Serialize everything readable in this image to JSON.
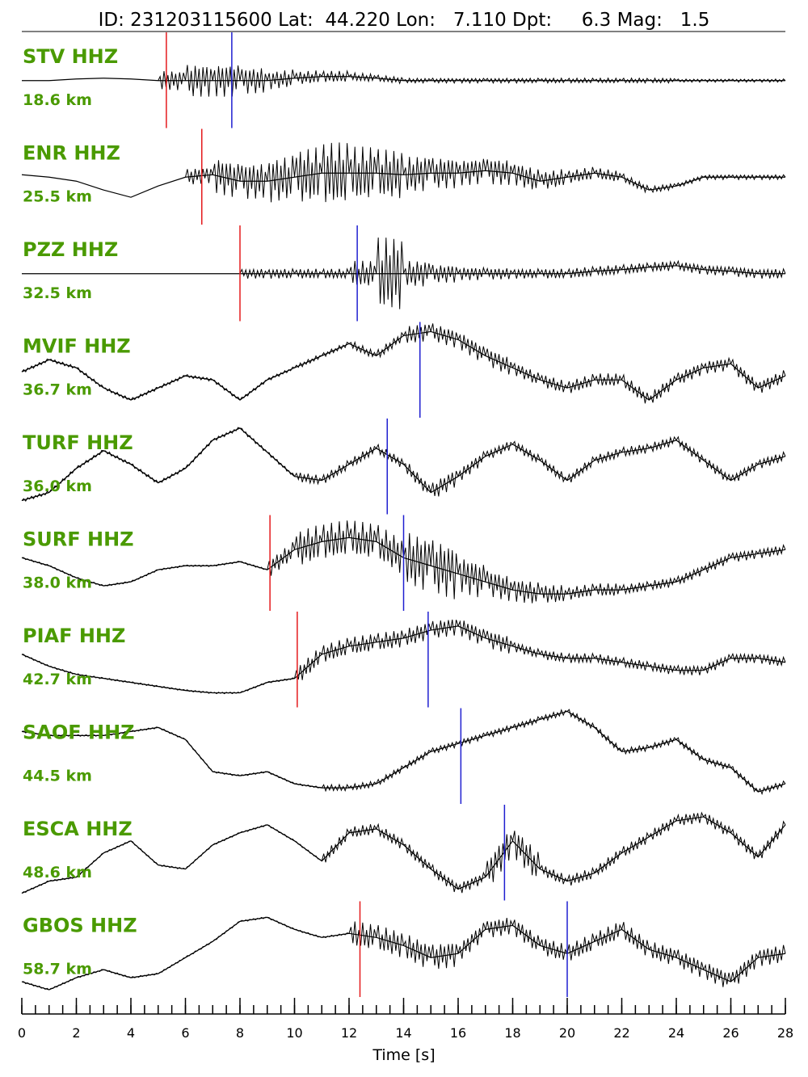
{
  "chart_data": {
    "type": "seismogram",
    "title": "ID: 231203115600 Lat:  44.220 Lon:   7.110 Dpt:     6.3 Mag:   1.5",
    "x_label": "Time [s]",
    "xlim": [
      0,
      28
    ],
    "xticks": [
      0,
      2,
      4,
      6,
      8,
      10,
      12,
      14,
      16,
      18,
      20,
      22,
      24,
      26,
      28
    ],
    "xminorticks": [
      0,
      0.5,
      1,
      1.5,
      2,
      2.5,
      3,
      3.5,
      4,
      4.5,
      5,
      5.5,
      6,
      6.5,
      7,
      7.5,
      8,
      8.5,
      9,
      9.5,
      10,
      10.5,
      11,
      11.5,
      12,
      12.5,
      13,
      13.5,
      14,
      14.5,
      15,
      15.5,
      16,
      16.5,
      17,
      17.5,
      18,
      18.5,
      19,
      19.5,
      20,
      20.5,
      21,
      21.5,
      22,
      22.5,
      23,
      23.5,
      24,
      24.5,
      25,
      25.5,
      26,
      26.5,
      27,
      27.5,
      28
    ],
    "x": [
      0,
      1,
      2,
      3,
      4,
      5,
      6,
      7,
      8,
      9,
      10,
      11,
      12,
      13,
      14,
      15,
      16,
      17,
      18,
      19,
      20,
      21,
      22,
      23,
      24,
      25,
      26,
      27,
      28
    ],
    "ylim": [
      -60,
      60
    ],
    "trace_color": "#000000",
    "label_color": "#4a9a00",
    "p_color": "#e41a1c",
    "s_color": "#1f1fd0",
    "traces": [
      {
        "name": "STV HHZ",
        "distance": "18.6 km",
        "p": 5.3,
        "s": 7.7,
        "values": [
          0,
          0,
          2,
          3,
          2,
          0,
          0,
          0,
          0,
          0,
          3,
          5,
          5,
          3,
          0,
          0,
          0,
          0,
          0,
          0,
          0,
          0,
          0,
          0,
          0,
          0,
          0,
          0,
          0
        ],
        "noise": [
          0,
          0,
          0,
          0,
          0,
          12,
          20,
          20,
          16,
          11,
          8,
          7,
          5,
          4,
          3,
          3,
          3,
          3,
          3,
          3,
          3,
          3,
          3,
          3,
          2,
          2,
          2,
          2,
          2
        ]
      },
      {
        "name": "ENR HHZ",
        "distance": "25.5 km",
        "p": 6.6,
        "values": [
          3,
          0,
          -5,
          -16,
          -25,
          -11,
          0,
          3,
          -5,
          -5,
          0,
          5,
          5,
          5,
          3,
          5,
          5,
          8,
          5,
          -5,
          0,
          5,
          0,
          -16,
          -11,
          0,
          0,
          0,
          0
        ],
        "noise": [
          0,
          0,
          0,
          0,
          0,
          0,
          10,
          22,
          22,
          27,
          33,
          38,
          33,
          30,
          22,
          19,
          16,
          16,
          14,
          11,
          8,
          7,
          5,
          4,
          3,
          3,
          3,
          3,
          3
        ]
      },
      {
        "name": "PZZ HHZ",
        "distance": "32.5 km",
        "p": 8.0,
        "s": 12.3,
        "values": [
          0,
          0,
          0,
          0,
          0,
          0,
          0,
          0,
          0,
          0,
          0,
          0,
          0,
          0,
          0,
          0,
          0,
          0,
          0,
          0,
          0,
          3,
          5,
          8,
          10,
          5,
          3,
          0,
          0
        ],
        "noise": [
          0,
          0,
          0,
          0,
          0,
          0,
          0,
          0,
          6,
          6,
          6,
          6,
          16,
          45,
          16,
          11,
          8,
          7,
          6,
          6,
          6,
          6,
          6,
          6,
          6,
          6,
          6,
          6,
          6
        ]
      },
      {
        "name": "MVIF HHZ",
        "distance": "36.7 km",
        "s": 14.6,
        "values": [
          -2,
          13,
          3,
          -22,
          -37,
          -22,
          -7,
          -12,
          -37,
          -12,
          3,
          18,
          33,
          18,
          43,
          48,
          38,
          18,
          3,
          -12,
          -22,
          -12,
          -12,
          -37,
          -12,
          3,
          8,
          -22,
          -7
        ],
        "noise": [
          2,
          2,
          2,
          2,
          2,
          2,
          2,
          2,
          2,
          2,
          3,
          3,
          5,
          6,
          11,
          11,
          11,
          11,
          8,
          8,
          8,
          8,
          8,
          8,
          8,
          8,
          8,
          8,
          8
        ]
      },
      {
        "name": "TURF HHZ",
        "distance": "36.0 km",
        "s": 13.4,
        "values": [
          -42,
          -32,
          -2,
          20,
          3,
          -20,
          -2,
          33,
          48,
          18,
          -12,
          -17,
          3,
          23,
          3,
          -32,
          -12,
          13,
          28,
          8,
          -17,
          8,
          18,
          23,
          33,
          8,
          -17,
          3,
          13
        ],
        "noise": [
          2,
          2,
          2,
          2,
          2,
          2,
          2,
          2,
          2,
          2,
          6,
          6,
          6,
          6,
          8,
          11,
          8,
          6,
          6,
          6,
          6,
          6,
          6,
          6,
          6,
          6,
          6,
          6,
          6
        ]
      },
      {
        "name": "SURF HHZ",
        "distance": "38.0 km",
        "p": 9.1,
        "s": 14.0,
        "values": [
          7,
          -3,
          -18,
          -28,
          -23,
          -8,
          -3,
          -3,
          2,
          -8,
          17,
          27,
          32,
          27,
          7,
          -3,
          -13,
          -23,
          -33,
          -38,
          -38,
          -33,
          -33,
          -28,
          -23,
          -8,
          7,
          12,
          17
        ],
        "noise": [
          1,
          1,
          1,
          1,
          1,
          1,
          1,
          1,
          1,
          11,
          22,
          22,
          22,
          22,
          33,
          33,
          22,
          16,
          14,
          11,
          8,
          8,
          6,
          6,
          6,
          6,
          6,
          6,
          6
        ]
      },
      {
        "name": "PIAF HHZ",
        "distance": "42.7 km",
        "p": 10.1,
        "s": 14.9,
        "values": [
          7,
          -8,
          -18,
          -23,
          -28,
          -33,
          -38,
          -41,
          -41,
          -28,
          -23,
          7,
          17,
          22,
          27,
          37,
          42,
          27,
          17,
          7,
          2,
          2,
          -3,
          -8,
          -13,
          -13,
          2,
          2,
          -3
        ],
        "noise": [
          1,
          1,
          1,
          1,
          1,
          1,
          1,
          1,
          1,
          1,
          11,
          11,
          11,
          11,
          11,
          11,
          11,
          11,
          6,
          6,
          6,
          6,
          6,
          6,
          6,
          6,
          6,
          6,
          6
        ]
      },
      {
        "name": "SAOF HHZ",
        "distance": "44.5 km",
        "s": 16.1,
        "values": [
          31,
          26,
          26,
          26,
          31,
          36,
          21,
          -19,
          -24,
          -19,
          -34,
          -39,
          -39,
          -34,
          -14,
          6,
          16,
          26,
          36,
          46,
          56,
          36,
          6,
          11,
          21,
          -4,
          -14,
          -44,
          -34
        ],
        "noise": [
          1,
          1,
          1,
          1,
          1,
          1,
          1,
          1,
          1,
          1,
          1,
          4,
          4,
          4,
          4,
          4,
          4,
          4,
          4,
          4,
          4,
          4,
          4,
          4,
          4,
          4,
          4,
          4,
          4
        ]
      },
      {
        "name": "ESCA HHZ",
        "distance": "48.6 km",
        "s": 17.7,
        "values": [
          -50,
          -35,
          -30,
          0,
          15,
          -15,
          -20,
          10,
          25,
          35,
          15,
          -10,
          25,
          30,
          10,
          -20,
          -45,
          -30,
          15,
          -20,
          -35,
          -25,
          0,
          20,
          40,
          45,
          25,
          -5,
          35
        ],
        "noise": [
          1,
          1,
          1,
          1,
          1,
          1,
          1,
          1,
          1,
          1,
          1,
          7,
          7,
          7,
          7,
          7,
          7,
          19,
          19,
          7,
          7,
          7,
          7,
          7,
          7,
          7,
          7,
          7,
          7
        ]
      },
      {
        "name": "GBOS HHZ",
        "distance": "58.7 km",
        "p": 12.4,
        "s": 20.0,
        "values": [
          -40,
          -50,
          -35,
          -25,
          -35,
          -30,
          -10,
          10,
          35,
          40,
          25,
          15,
          20,
          15,
          5,
          -10,
          -5,
          25,
          30,
          5,
          -5,
          10,
          25,
          0,
          -10,
          -25,
          -40,
          -10,
          -5
        ],
        "noise": [
          1,
          1,
          1,
          1,
          1,
          1,
          1,
          1,
          1,
          1,
          1,
          1,
          16,
          16,
          16,
          16,
          11,
          11,
          11,
          11,
          11,
          11,
          11,
          11,
          11,
          11,
          11,
          11,
          11
        ]
      }
    ]
  }
}
